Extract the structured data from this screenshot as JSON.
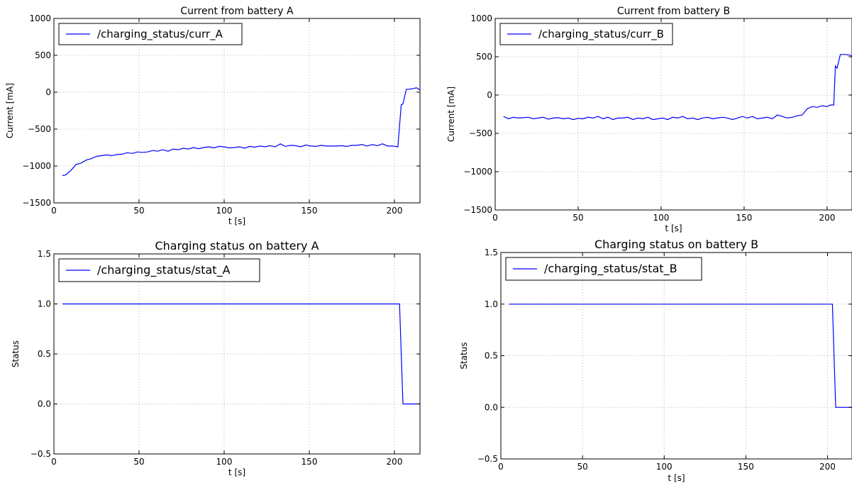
{
  "chart_data": [
    {
      "type": "line",
      "title": "Current from battery A",
      "xlabel": "t [s]",
      "ylabel": "Current [mA]",
      "xlim": [
        0,
        215
      ],
      "ylim": [
        -1500,
        1000
      ],
      "xticks": [
        0,
        50,
        100,
        150,
        200
      ],
      "yticks": [
        -1500,
        -1000,
        -500,
        0,
        500,
        1000
      ],
      "grid": true,
      "legend_position": "top-left",
      "line_color": "#0000ff",
      "series": [
        {
          "name": "/charging_status/curr_A",
          "x": [
            5,
            7,
            10,
            13,
            16,
            19,
            22,
            25,
            28,
            31,
            34,
            37,
            40,
            43,
            46,
            49,
            52,
            55,
            58,
            61,
            64,
            67,
            70,
            73,
            76,
            79,
            82,
            85,
            88,
            91,
            94,
            97,
            100,
            103,
            106,
            109,
            112,
            115,
            118,
            121,
            124,
            127,
            130,
            133,
            136,
            139,
            142,
            145,
            148,
            151,
            154,
            157,
            160,
            163,
            166,
            169,
            172,
            175,
            178,
            181,
            184,
            187,
            190,
            193,
            196,
            199,
            202,
            204,
            205,
            207,
            209,
            211,
            213,
            215
          ],
          "y": [
            -1130,
            -1120,
            -1060,
            -980,
            -960,
            -920,
            -900,
            -870,
            -860,
            -850,
            -860,
            -845,
            -840,
            -820,
            -830,
            -810,
            -815,
            -810,
            -790,
            -800,
            -780,
            -800,
            -770,
            -780,
            -760,
            -770,
            -750,
            -765,
            -750,
            -740,
            -755,
            -735,
            -740,
            -755,
            -750,
            -740,
            -760,
            -735,
            -745,
            -730,
            -740,
            -725,
            -740,
            -700,
            -735,
            -720,
            -725,
            -740,
            -715,
            -730,
            -735,
            -720,
            -730,
            -730,
            -730,
            -725,
            -735,
            -720,
            -720,
            -710,
            -730,
            -710,
            -725,
            -700,
            -730,
            -730,
            -740,
            -170,
            -160,
            40,
            40,
            50,
            60,
            30
          ]
        }
      ]
    },
    {
      "type": "line",
      "title": "Current from battery B",
      "xlabel": "t [s]",
      "ylabel": "Current [mA]",
      "xlim": [
        0,
        215
      ],
      "ylim": [
        -1500,
        1000
      ],
      "xticks": [
        0,
        50,
        100,
        150,
        200
      ],
      "yticks": [
        -1500,
        -1000,
        -500,
        0,
        500,
        1000
      ],
      "grid": true,
      "legend_position": "top-left",
      "line_color": "#0000ff",
      "series": [
        {
          "name": "/charging_status/curr_B",
          "x": [
            5,
            8,
            11,
            14,
            17,
            20,
            23,
            26,
            29,
            32,
            35,
            38,
            41,
            44,
            47,
            50,
            53,
            56,
            59,
            62,
            65,
            68,
            71,
            74,
            77,
            80,
            83,
            86,
            89,
            92,
            95,
            98,
            101,
            104,
            107,
            110,
            113,
            116,
            119,
            122,
            125,
            128,
            131,
            134,
            137,
            140,
            143,
            146,
            149,
            152,
            155,
            158,
            161,
            164,
            167,
            170,
            173,
            176,
            179,
            182,
            185,
            188,
            191,
            194,
            197,
            200,
            202,
            204,
            205,
            206,
            208,
            211,
            214,
            215
          ],
          "y": [
            -280,
            -310,
            -290,
            -300,
            -295,
            -290,
            -310,
            -300,
            -290,
            -315,
            -300,
            -295,
            -310,
            -300,
            -320,
            -305,
            -310,
            -290,
            -300,
            -280,
            -310,
            -290,
            -320,
            -300,
            -300,
            -290,
            -320,
            -300,
            -310,
            -290,
            -320,
            -310,
            -300,
            -320,
            -290,
            -300,
            -280,
            -310,
            -300,
            -320,
            -300,
            -290,
            -310,
            -300,
            -290,
            -300,
            -320,
            -300,
            -280,
            -300,
            -280,
            -310,
            -300,
            -290,
            -310,
            -260,
            -280,
            -300,
            -290,
            -270,
            -260,
            -180,
            -150,
            -160,
            -140,
            -150,
            -130,
            -130,
            380,
            350,
            530,
            530,
            520,
            500
          ]
        }
      ]
    },
    {
      "type": "line",
      "title": "Charging status on battery A",
      "xlabel": "t [s]",
      "ylabel": "Status",
      "xlim": [
        0,
        215
      ],
      "ylim": [
        -0.5,
        1.5
      ],
      "xticks": [
        0,
        50,
        100,
        150,
        200
      ],
      "yticks": [
        -0.5,
        0.0,
        0.5,
        1.0,
        1.5
      ],
      "grid": true,
      "legend_position": "top-left",
      "line_color": "#0000ff",
      "series": [
        {
          "name": "/charging_status/stat_A",
          "x": [
            5,
            203,
            205,
            215
          ],
          "y": [
            1.0,
            1.0,
            0.0,
            0.0
          ]
        }
      ]
    },
    {
      "type": "line",
      "title": "Charging status on battery B",
      "xlabel": "t [s]",
      "ylabel": "Status",
      "xlim": [
        0,
        215
      ],
      "ylim": [
        -0.5,
        1.5
      ],
      "xticks": [
        0,
        50,
        100,
        150,
        200
      ],
      "yticks": [
        -0.5,
        0.0,
        0.5,
        1.0,
        1.5
      ],
      "grid": true,
      "legend_position": "top-left",
      "line_color": "#0000ff",
      "series": [
        {
          "name": "/charging_status/stat_B",
          "x": [
            5,
            203,
            205,
            215
          ],
          "y": [
            1.0,
            1.0,
            0.0,
            0.0
          ]
        }
      ]
    }
  ]
}
